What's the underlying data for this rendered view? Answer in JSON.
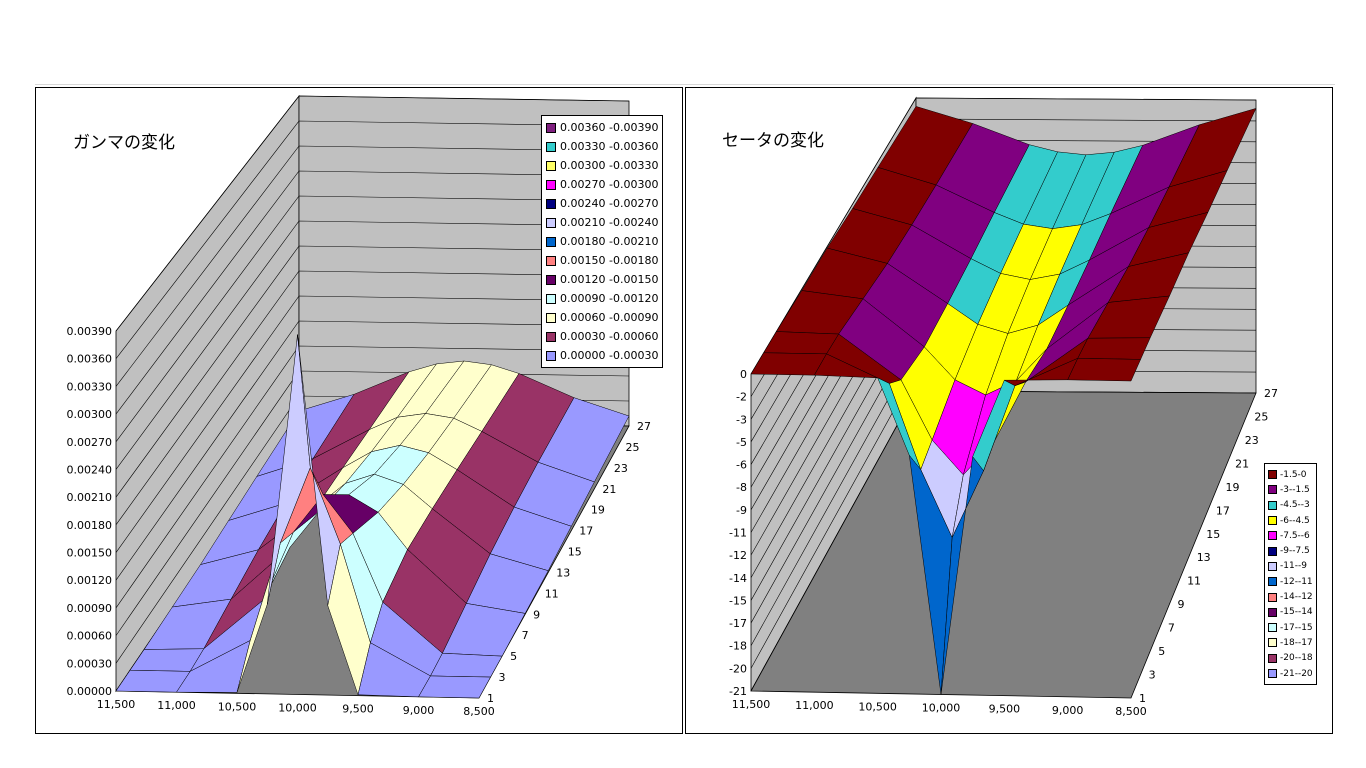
{
  "chart_data": [
    {
      "type": "surface",
      "title": "ガンマの変化",
      "x": [
        11500,
        11000,
        10500,
        10250,
        10000,
        9750,
        9500,
        9000,
        8500
      ],
      "x_ticks": [
        "11,500",
        "11,000",
        "10,500",
        "10,000",
        "9,500",
        "9,000",
        "8,500"
      ],
      "x_tick_values": [
        11500,
        11000,
        10500,
        10000,
        9500,
        9000,
        8500
      ],
      "depth": [
        1,
        3,
        5,
        9,
        13,
        17,
        21,
        27
      ],
      "depth_ticks": [
        "1",
        "3",
        "5",
        "7",
        "9",
        "11",
        "13",
        "15",
        "17",
        "19",
        "21",
        "23",
        "25",
        "27"
      ],
      "z_ticks": [
        "0.00000",
        "0.00030",
        "0.00060",
        "0.00090",
        "0.00120",
        "0.00150",
        "0.00180",
        "0.00210",
        "0.00240",
        "0.00270",
        "0.00300",
        "0.00330",
        "0.00360",
        "0.00390"
      ],
      "zlim": [
        0,
        0.0039
      ],
      "z": [
        [
          0,
          0,
          1e-05,
          0.00097,
          0.0039,
          0.00097,
          1e-05,
          0,
          0
        ],
        [
          0,
          0,
          0.00035,
          0.00142,
          0.00225,
          0.00142,
          0.00035,
          0,
          0
        ],
        [
          0,
          2e-05,
          0.00057,
          0.00132,
          0.00174,
          0.00132,
          0.00057,
          2e-05,
          0
        ],
        [
          1e-05,
          0.00011,
          0.0007,
          0.00111,
          0.0013,
          0.00111,
          0.0007,
          0.00011,
          1e-05
        ],
        [
          2e-05,
          0.0002,
          0.0007,
          0.00097,
          0.00108,
          0.00097,
          0.0007,
          0.0002,
          2e-05
        ],
        [
          5e-05,
          0.00026,
          0.00068,
          0.00087,
          0.00095,
          0.00087,
          0.00068,
          0.00026,
          5e-05
        ],
        [
          8e-05,
          0.0003,
          0.00065,
          0.0008,
          0.00085,
          0.0008,
          0.00065,
          0.0003,
          8e-05
        ],
        [
          0.00012,
          0.00033,
          0.00061,
          0.00071,
          0.00075,
          0.00071,
          0.00061,
          0.00033,
          0.00012
        ]
      ],
      "legend_position": "top-right",
      "legend": [
        {
          "label": "0.00360 -0.00390",
          "min": 0.0036,
          "max": 0.0039,
          "color": "#7f1f7f"
        },
        {
          "label": "0.00330 -0.00360",
          "min": 0.0033,
          "max": 0.0036,
          "color": "#33cccc"
        },
        {
          "label": "0.00300 -0.00330",
          "min": 0.003,
          "max": 0.0033,
          "color": "#ffff66"
        },
        {
          "label": "0.00270 -0.00300",
          "min": 0.0027,
          "max": 0.003,
          "color": "#ff00ff"
        },
        {
          "label": "0.00240 -0.00270",
          "min": 0.0024,
          "max": 0.0027,
          "color": "#000080"
        },
        {
          "label": "0.00210 -0.00240",
          "min": 0.0021,
          "max": 0.0024,
          "color": "#ccccff"
        },
        {
          "label": "0.00180 -0.00210",
          "min": 0.0018,
          "max": 0.0021,
          "color": "#0066cc"
        },
        {
          "label": "0.00150 -0.00180",
          "min": 0.0015,
          "max": 0.0018,
          "color": "#ff8080"
        },
        {
          "label": "0.00120 -0.00150",
          "min": 0.0012,
          "max": 0.0015,
          "color": "#660066"
        },
        {
          "label": "0.00090 -0.00120",
          "min": 0.0009,
          "max": 0.0012,
          "color": "#ccffff"
        },
        {
          "label": "0.00060 -0.00090",
          "min": 0.0006,
          "max": 0.0009,
          "color": "#ffffcc"
        },
        {
          "label": "0.00030 -0.00060",
          "min": 0.0003,
          "max": 0.0006,
          "color": "#993366"
        },
        {
          "label": "0.00000 -0.00030",
          "min": 0,
          "max": 0.0003,
          "color": "#9999ff"
        }
      ]
    },
    {
      "type": "surface",
      "title": "セータの変化",
      "x": [
        11500,
        11000,
        10500,
        10250,
        10000,
        9750,
        9500,
        9000,
        8500
      ],
      "x_ticks": [
        "11,500",
        "11,000",
        "10,500",
        "10,000",
        "9,500",
        "9,000",
        "8,500"
      ],
      "x_tick_values": [
        11500,
        11000,
        10500,
        10000,
        9500,
        9000,
        8500
      ],
      "depth": [
        1,
        3,
        5,
        9,
        13,
        17,
        21,
        27
      ],
      "depth_ticks": [
        "1",
        "3",
        "5",
        "7",
        "9",
        "11",
        "13",
        "15",
        "17",
        "19",
        "21",
        "23",
        "25",
        "27"
      ],
      "z_ticks": [
        "-21",
        "-20",
        "-18",
        "-17",
        "-15",
        "-14",
        "-12",
        "-11",
        "-9",
        "-8",
        "-6",
        "-5",
        "-3",
        "-2",
        "0"
      ],
      "zlim": [
        -21,
        0
      ],
      "z": [
        [
          0,
          0,
          -0.1,
          -5.2,
          -21,
          -5.2,
          -0.1,
          0,
          0
        ],
        [
          0,
          0,
          -1.9,
          -7.6,
          -12.1,
          -7.6,
          -1.9,
          0,
          0
        ],
        [
          0,
          -0.1,
          -3.1,
          -7.1,
          -9.4,
          -7.1,
          -3.1,
          -0.1,
          0
        ],
        [
          -0.1,
          -0.6,
          -3.8,
          -6,
          -7,
          -6,
          -3.8,
          -0.6,
          -0.1
        ],
        [
          -0.1,
          -1.1,
          -3.8,
          -5.2,
          -5.8,
          -5.2,
          -3.8,
          -1.1,
          -0.1
        ],
        [
          -0.3,
          -1.4,
          -3.7,
          -4.7,
          -5.1,
          -4.7,
          -3.7,
          -1.4,
          -0.3
        ],
        [
          -0.4,
          -1.6,
          -3.5,
          -4.3,
          -4.6,
          -4.3,
          -3.5,
          -1.6,
          -0.4
        ],
        [
          -0.6,
          -1.8,
          -3.3,
          -3.8,
          -4,
          -3.8,
          -3.3,
          -1.8,
          -0.6
        ]
      ],
      "legend_position": "right",
      "legend": [
        {
          "label": "-1.5-0",
          "min": -1.5,
          "max": 0,
          "color": "#800000"
        },
        {
          "label": "-3--1.5",
          "min": -3,
          "max": -1.5,
          "color": "#800080"
        },
        {
          "label": "-4.5--3",
          "min": -4.5,
          "max": -3,
          "color": "#33cccc"
        },
        {
          "label": "-6--4.5",
          "min": -6,
          "max": -4.5,
          "color": "#ffff00"
        },
        {
          "label": "-7.5--6",
          "min": -7.5,
          "max": -6,
          "color": "#ff00ff"
        },
        {
          "label": "-9--7.5",
          "min": -9,
          "max": -7.5,
          "color": "#000080"
        },
        {
          "label": "-11--9",
          "min": -10.5,
          "max": -9,
          "color": "#ccccff"
        },
        {
          "label": "-12--11",
          "min": -12,
          "max": -10.5,
          "color": "#0066cc"
        },
        {
          "label": "-14--12",
          "min": -13.5,
          "max": -12,
          "color": "#ff8080"
        },
        {
          "label": "-15--14",
          "min": -15,
          "max": -13.5,
          "color": "#660066"
        },
        {
          "label": "-17--15",
          "min": -16.5,
          "max": -15,
          "color": "#ccffff"
        },
        {
          "label": "-18--17",
          "min": -18,
          "max": -16.5,
          "color": "#ffffcc"
        },
        {
          "label": "-20--18",
          "min": -19.5,
          "max": -18,
          "color": "#993366"
        },
        {
          "label": "-21--20",
          "min": -21,
          "max": -19.5,
          "color": "#9999ff"
        }
      ]
    }
  ],
  "colors": {
    "wall": "#c0c0c0",
    "floor": "#808080"
  }
}
